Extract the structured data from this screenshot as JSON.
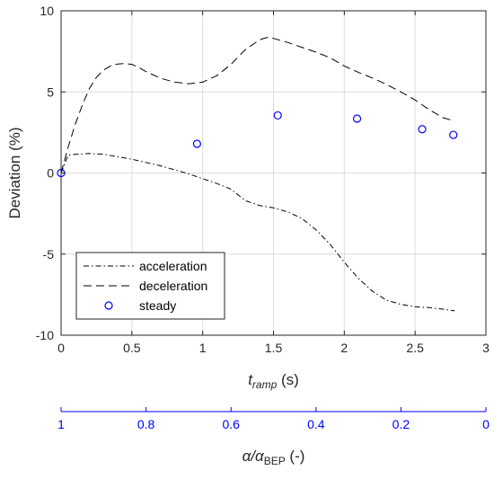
{
  "chart_data": {
    "type": "line",
    "xlabel_main": "t",
    "xlabel_sub": "ramp",
    "xlabel_unit": " (s)",
    "ylabel": "Deviation (%)",
    "xlim": [
      0,
      3
    ],
    "ylim": [
      -10,
      10
    ],
    "xticks": [
      0,
      0.5,
      1,
      1.5,
      2,
      2.5,
      3
    ],
    "xtick_labels": [
      "0",
      "0.5",
      "1",
      "1.5",
      "2",
      "2.5",
      "3"
    ],
    "yticks": [
      -10,
      -5,
      0,
      5,
      10
    ],
    "ytick_labels": [
      "-10",
      "-5",
      "0",
      "5",
      "10"
    ],
    "grid": true,
    "legend_position": "bottom-left",
    "series": [
      {
        "name": "acceleration",
        "style": "dashdot",
        "color": "#000000",
        "points": [
          [
            0,
            0
          ],
          [
            0.05,
            1.1
          ],
          [
            0.1,
            1.15
          ],
          [
            0.2,
            1.2
          ],
          [
            0.3,
            1.15
          ],
          [
            0.4,
            1.0
          ],
          [
            0.5,
            0.85
          ],
          [
            0.6,
            0.65
          ],
          [
            0.7,
            0.45
          ],
          [
            0.8,
            0.2
          ],
          [
            0.9,
            -0.05
          ],
          [
            1.0,
            -0.35
          ],
          [
            1.1,
            -0.65
          ],
          [
            1.2,
            -1.0
          ],
          [
            1.3,
            -1.7
          ],
          [
            1.4,
            -2.0
          ],
          [
            1.5,
            -2.15
          ],
          [
            1.6,
            -2.4
          ],
          [
            1.7,
            -2.8
          ],
          [
            1.8,
            -3.5
          ],
          [
            1.9,
            -4.4
          ],
          [
            2.0,
            -5.5
          ],
          [
            2.1,
            -6.5
          ],
          [
            2.2,
            -7.3
          ],
          [
            2.3,
            -7.85
          ],
          [
            2.4,
            -8.1
          ],
          [
            2.5,
            -8.25
          ],
          [
            2.6,
            -8.3
          ],
          [
            2.7,
            -8.4
          ],
          [
            2.78,
            -8.5
          ]
        ]
      },
      {
        "name": "deceleration",
        "style": "dashed",
        "color": "#000000",
        "points": [
          [
            0,
            0
          ],
          [
            0.05,
            1.6
          ],
          [
            0.1,
            3.0
          ],
          [
            0.15,
            4.2
          ],
          [
            0.2,
            5.2
          ],
          [
            0.25,
            5.9
          ],
          [
            0.3,
            6.35
          ],
          [
            0.35,
            6.6
          ],
          [
            0.4,
            6.72
          ],
          [
            0.45,
            6.75
          ],
          [
            0.5,
            6.7
          ],
          [
            0.55,
            6.5
          ],
          [
            0.6,
            6.25
          ],
          [
            0.7,
            5.85
          ],
          [
            0.8,
            5.6
          ],
          [
            0.9,
            5.5
          ],
          [
            1.0,
            5.6
          ],
          [
            1.1,
            6.0
          ],
          [
            1.2,
            6.7
          ],
          [
            1.3,
            7.6
          ],
          [
            1.4,
            8.2
          ],
          [
            1.45,
            8.35
          ],
          [
            1.5,
            8.3
          ],
          [
            1.6,
            8.05
          ],
          [
            1.7,
            7.75
          ],
          [
            1.8,
            7.45
          ],
          [
            1.9,
            7.1
          ],
          [
            2.0,
            6.6
          ],
          [
            2.1,
            6.2
          ],
          [
            2.2,
            5.85
          ],
          [
            2.3,
            5.45
          ],
          [
            2.4,
            5.0
          ],
          [
            2.5,
            4.5
          ],
          [
            2.6,
            3.9
          ],
          [
            2.7,
            3.4
          ],
          [
            2.78,
            3.2
          ]
        ]
      },
      {
        "name": "steady",
        "style": "markers",
        "color": "#0000ff",
        "points": [
          [
            0,
            0
          ],
          [
            0.96,
            1.8
          ],
          [
            1.53,
            3.55
          ],
          [
            2.09,
            3.35
          ],
          [
            2.55,
            2.7
          ],
          [
            2.77,
            2.35
          ]
        ]
      }
    ],
    "secondary_axis": {
      "label_main": "α/α",
      "label_sub": "BEP",
      "label_unit": " (-)",
      "color": "#0000ff",
      "ticks": [
        1,
        0.8,
        0.6,
        0.4,
        0.2,
        0
      ],
      "tick_labels": [
        "1",
        "0.8",
        "0.6",
        "0.4",
        "0.2",
        "0"
      ]
    }
  }
}
